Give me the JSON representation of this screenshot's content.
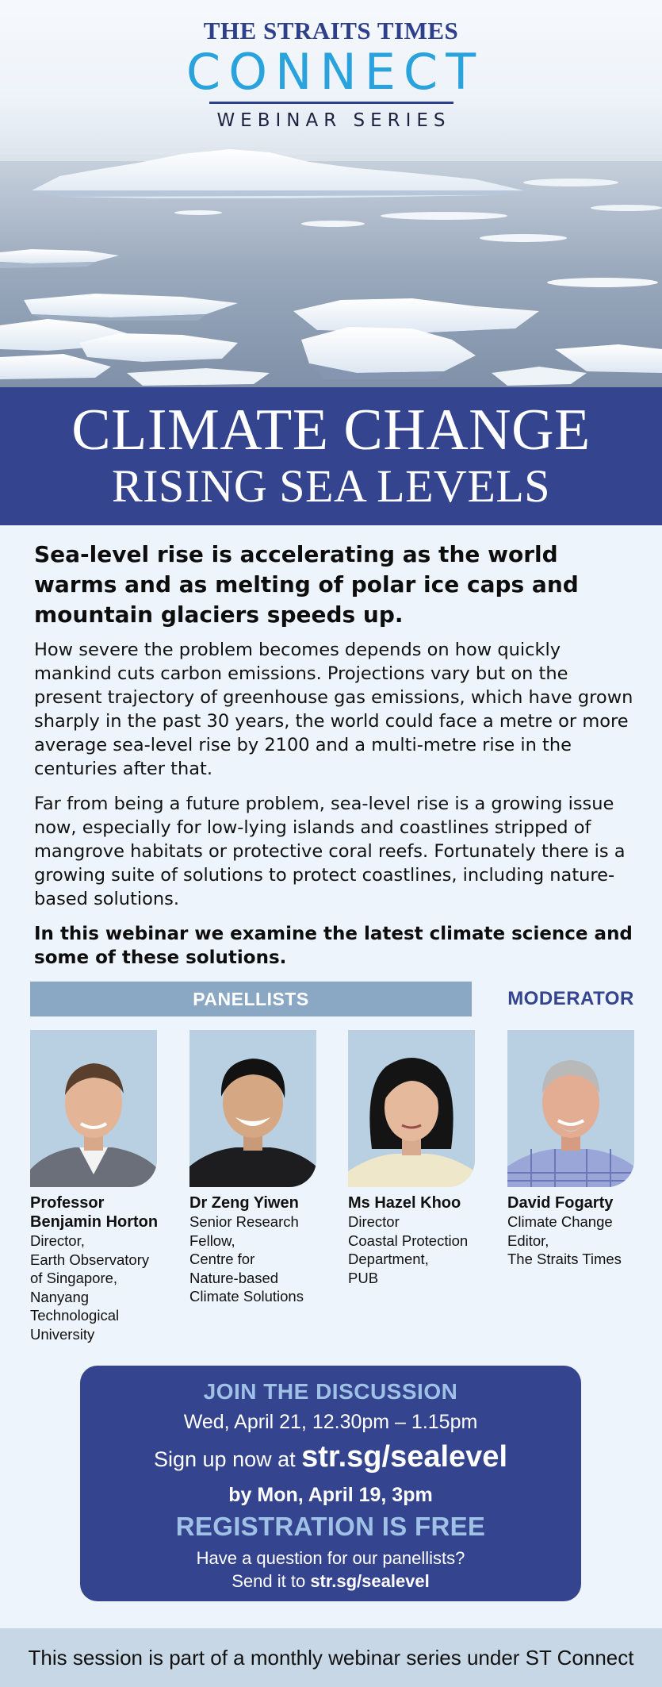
{
  "brand": {
    "publication": "THE STRAITS TIMES",
    "connect": "CONNECT",
    "series": "WEBINAR SERIES"
  },
  "title": {
    "line1": "CLIMATE CHANGE",
    "line2": "RISING SEA LEVELS"
  },
  "body": {
    "lead": "Sea-level rise is accelerating as the world warms and as melting of polar ice caps and mountain glaciers speeds up.",
    "paragraph1": "How severe the problem becomes depends on how quickly mankind cuts carbon emissions. Projections vary but on the present trajectory of greenhouse gas emissions, which have grown sharply in the past 30 years, the world could face a metre or more average sea-level rise by 2100 and a multi-metre rise in the centuries after that.",
    "paragraph2": "Far from being a future problem, sea-level rise is a growing issue now, especially for low-lying islands and coastlines stripped of mangrove habitats or protective coral reefs. Fortunately there is a growing suite of solutions to protect coastlines, including nature-based solutions.",
    "closing": "In this webinar we examine the latest climate science and some of these solutions."
  },
  "panel": {
    "panellists_label": "PANELLISTS",
    "moderator_label": "MODERATOR",
    "people": [
      {
        "name": "Professor Benjamin Horton",
        "role": "Director,\nEarth Observatory\nof Singapore,\nNanyang\nTechnological\nUniversity"
      },
      {
        "name": "Dr Zeng Yiwen",
        "role": "Senior Research\nFellow,\nCentre for\nNature-based\nClimate Solutions"
      },
      {
        "name": "Ms Hazel Khoo",
        "role": "Director\nCoastal Protection\nDepartment,\nPUB"
      },
      {
        "name": "David Fogarty",
        "role": "Climate Change\nEditor,\nThe Straits Times"
      }
    ]
  },
  "cta": {
    "join": "JOIN THE DISCUSSION",
    "datetime": "Wed, April 21, 12.30pm – 1.15pm",
    "signup_text": "Sign up now at ",
    "signup_url": "str.sg/sealevel",
    "deadline": "by Mon, April 19, 3pm",
    "free": "REGISTRATION IS FREE",
    "question": "Have a question for our panellists?",
    "send_text": "Send it to ",
    "send_url": "str.sg/sealevel"
  },
  "footer": {
    "text": "This session is part of a monthly webinar series under ST Connect"
  },
  "colors": {
    "navy": "#34448f",
    "connect_blue": "#2aa3dd",
    "panel_bar": "#8aa8c4",
    "light_blue": "#9fc1e6",
    "page_bg": "#eef4fb",
    "footer_bg": "#c7d7e6"
  }
}
